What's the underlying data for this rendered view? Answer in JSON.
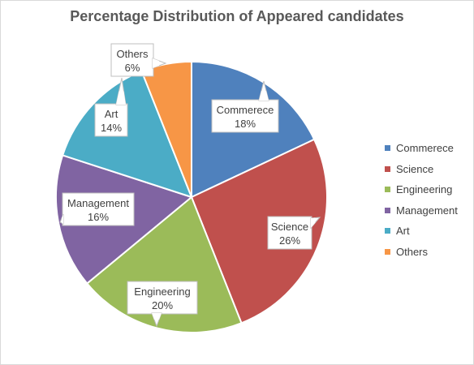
{
  "chart_data": {
    "type": "pie",
    "title": "Percentage Distribution of Appeared candidates",
    "categories": [
      "Commerece",
      "Science",
      "Engineering",
      "Management",
      "Art",
      "Others"
    ],
    "values": [
      18,
      26,
      20,
      16,
      14,
      6
    ],
    "value_labels": [
      "18%",
      "26%",
      "20%",
      "16%",
      "14%",
      "6%"
    ],
    "colors": [
      "#4f81bd",
      "#c0504d",
      "#9bbb59",
      "#8064a2",
      "#4bacc6",
      "#f79646"
    ],
    "legend_position": "right",
    "data_label_style": "callout"
  }
}
